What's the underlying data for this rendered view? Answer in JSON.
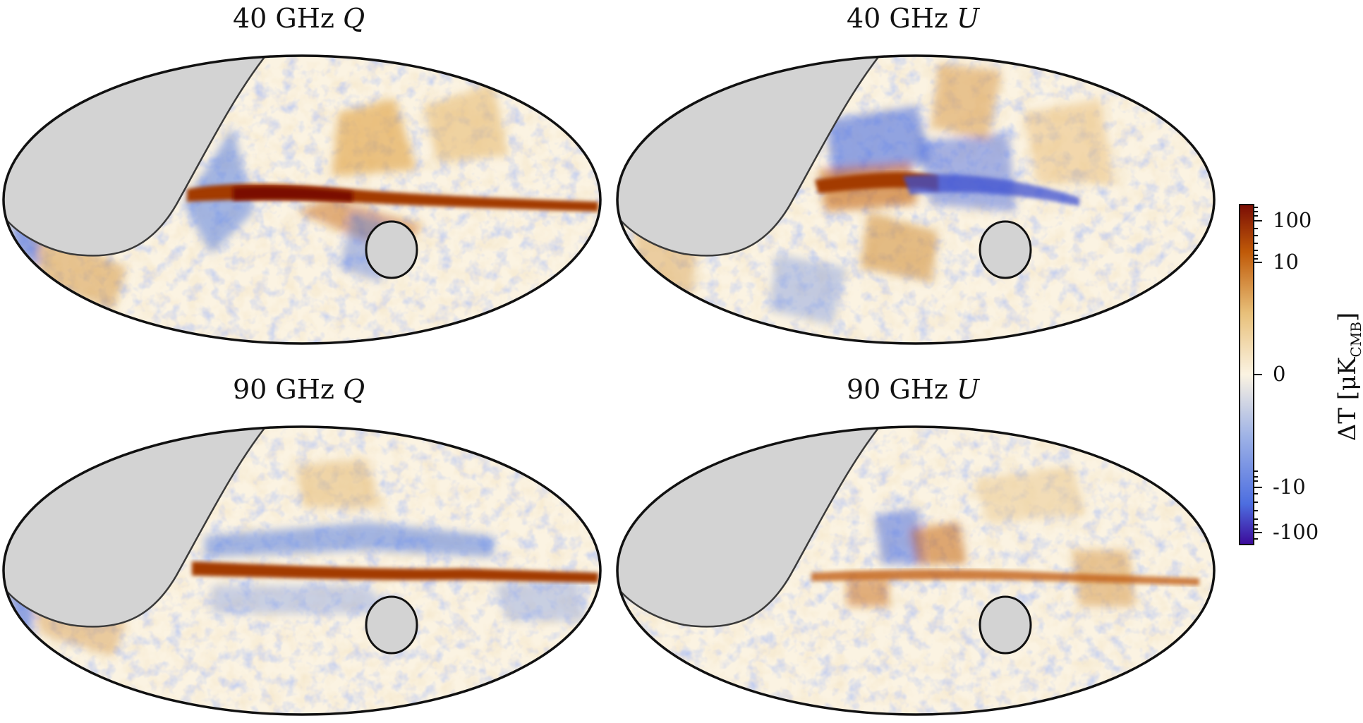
{
  "panels": [
    {
      "title": "40 GHz ",
      "component": "Q"
    },
    {
      "title": "40 GHz ",
      "component": "U"
    },
    {
      "title": "90 GHz ",
      "component": "Q"
    },
    {
      "title": "90 GHz ",
      "component": "U"
    }
  ],
  "colorbar": {
    "label_prefix": "ΔT [μK",
    "label_sub": "CMB",
    "label_suffix": "]",
    "tick_labels": [
      "100",
      "10",
      "0",
      "-10",
      "-100"
    ],
    "tick_values": [
      100,
      10,
      0,
      -10,
      -100
    ],
    "colors": {
      "max": "#7a0d05",
      "high": "#c05a08",
      "mid_high": "#e8c07a",
      "zero": "#fbf3e2",
      "mid_low": "#b8c8e8",
      "low": "#4d6ee0",
      "min": "#3c0a9a"
    }
  },
  "mask_color": "#d3d3d3"
}
